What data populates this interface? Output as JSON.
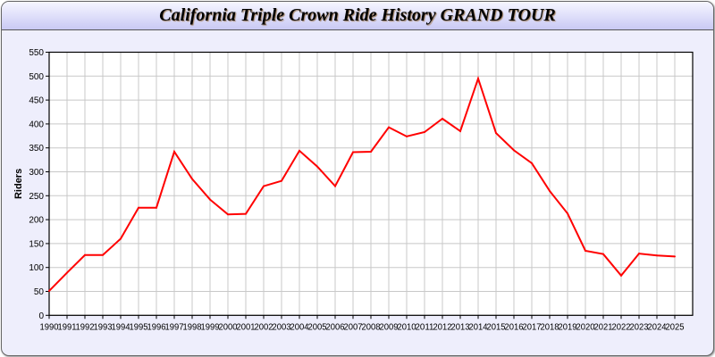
{
  "chart_data": {
    "type": "line",
    "title": "California Triple Crown Ride History GRAND TOUR",
    "xlabel": "",
    "ylabel": "Riders",
    "ylim": [
      0,
      550
    ],
    "yticks": [
      0,
      50,
      100,
      150,
      200,
      250,
      300,
      350,
      400,
      450,
      500,
      550
    ],
    "grid": true,
    "x": [
      1990,
      1991,
      1992,
      1993,
      1994,
      1995,
      1996,
      1997,
      1998,
      1999,
      2000,
      2001,
      2002,
      2003,
      2004,
      2005,
      2006,
      2007,
      2008,
      2009,
      2010,
      2011,
      2012,
      2013,
      2014,
      2015,
      2016,
      2017,
      2018,
      2019,
      2020,
      2021,
      2022,
      2023,
      2024,
      2025
    ],
    "series": [
      {
        "color": "#ff0000",
        "values": [
          51,
          89,
          126,
          126,
          160,
          225,
          225,
          342,
          285,
          242,
          211,
          212,
          270,
          281,
          344,
          311,
          270,
          341,
          342,
          393,
          374,
          383,
          411,
          385,
          495,
          381,
          345,
          318,
          260,
          213,
          135,
          128,
          83,
          129,
          125,
          123
        ]
      }
    ]
  }
}
